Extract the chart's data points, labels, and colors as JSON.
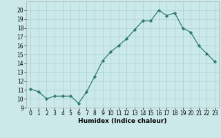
{
  "x": [
    0,
    1,
    2,
    3,
    4,
    5,
    6,
    7,
    8,
    9,
    10,
    11,
    12,
    13,
    14,
    15,
    16,
    17,
    18,
    19,
    20,
    21,
    22,
    23
  ],
  "y": [
    11.1,
    10.8,
    10.0,
    10.3,
    10.3,
    10.3,
    9.5,
    10.8,
    12.5,
    14.3,
    15.3,
    16.0,
    16.8,
    17.8,
    18.8,
    18.8,
    20.0,
    19.4,
    19.7,
    18.0,
    17.5,
    16.0,
    15.1,
    14.2
  ],
  "line_color": "#2d7a6e",
  "marker": "D",
  "marker_size": 2.2,
  "bg_color": "#cce9e9",
  "grid_color": "#aad4d4",
  "xlabel": "Humidex (Indice chaleur)",
  "ylim": [
    9,
    21
  ],
  "xlim": [
    -0.5,
    23.5
  ],
  "yticks": [
    9,
    10,
    11,
    12,
    13,
    14,
    15,
    16,
    17,
    18,
    19,
    20
  ],
  "xticks": [
    0,
    1,
    2,
    3,
    4,
    5,
    6,
    7,
    8,
    9,
    10,
    11,
    12,
    13,
    14,
    15,
    16,
    17,
    18,
    19,
    20,
    21,
    22,
    23
  ],
  "label_fontsize": 6.5,
  "tick_fontsize": 5.5
}
